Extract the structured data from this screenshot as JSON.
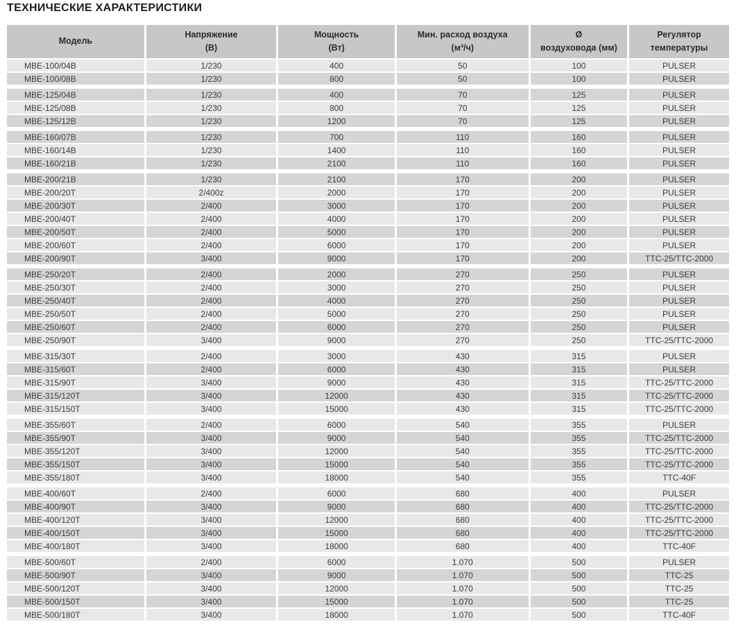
{
  "title": "ТЕХНИЧЕСКИЕ ХАРАКТЕРИСТИКИ",
  "colors": {
    "header_bg": "#c7c7c7",
    "row_light": "#e8e8e8",
    "row_dark": "#d5d5d5",
    "header_text": "#2b2b2b",
    "body_text": "#3a3a3a",
    "title_color": "#1d1d1d",
    "separator": "#ffffff"
  },
  "table": {
    "columns": [
      {
        "line1": "Модель",
        "line2": ""
      },
      {
        "line1": "Напряжение",
        "line2": "(В)"
      },
      {
        "line1": "Мощность",
        "line2": "(Вт)"
      },
      {
        "line1": "Мин. расход воздуха",
        "line2": "(м³/ч)"
      },
      {
        "line1": "Ø",
        "line2": "воздуховода (мм)"
      },
      {
        "line1": "Регулятор",
        "line2": "температуры"
      }
    ],
    "groups": [
      {
        "name": "MBE-100",
        "stripe_start": "light",
        "rows": [
          [
            "MBE-100/04B",
            "1/230",
            "400",
            "50",
            "100",
            "PULSER"
          ],
          [
            "MBE-100/08B",
            "1/230",
            "800",
            "50",
            "100",
            "PULSER"
          ]
        ]
      },
      {
        "name": "MBE-125",
        "stripe_start": "dark",
        "rows": [
          [
            "MBE-125/04B",
            "1/230",
            "400",
            "70",
            "125",
            "PULSER"
          ],
          [
            "MBE-125/08B",
            "1/230",
            "800",
            "70",
            "125",
            "PULSER"
          ],
          [
            "MBE-125/12B",
            "1/230",
            "1200",
            "70",
            "125",
            "PULSER"
          ]
        ]
      },
      {
        "name": "MBE-160",
        "stripe_start": "dark",
        "rows": [
          [
            "MBE-160/07B",
            "1/230",
            "700",
            "110",
            "160",
            "PULSER"
          ],
          [
            "MBE-160/14B",
            "1/230",
            "1400",
            "110",
            "160",
            "PULSER"
          ],
          [
            "MBE-160/21B",
            "1/230",
            "2100",
            "110",
            "160",
            "PULSER"
          ]
        ]
      },
      {
        "name": "MBE-200",
        "stripe_start": "dark",
        "rows": [
          [
            "MBE-200/21B",
            "1/230",
            "2100",
            "170",
            "200",
            "PULSER"
          ],
          [
            "MBE-200/20T",
            "2/400z",
            "2000",
            "170",
            "200",
            "PULSER"
          ],
          [
            "MBE-200/30T",
            "2/400",
            "3000",
            "170",
            "200",
            "PULSER"
          ],
          [
            "MBE-200/40T",
            "2/400",
            "4000",
            "170",
            "200",
            "PULSER"
          ],
          [
            "MBE-200/50T",
            "2/400",
            "5000",
            "170",
            "200",
            "PULSER"
          ],
          [
            "MBE-200/60T",
            "2/400",
            "6000",
            "170",
            "200",
            "PULSER"
          ],
          [
            "MBE-200/90T",
            "3/400",
            "9000",
            "170",
            "200",
            "TTC-25/TTC-2000"
          ]
        ]
      },
      {
        "name": "MBE-250",
        "stripe_start": "dark",
        "rows": [
          [
            "MBE-250/20T",
            "2/400",
            "2000",
            "270",
            "250",
            "PULSER"
          ],
          [
            "MBE-250/30T",
            "2/400",
            "3000",
            "270",
            "250",
            "PULSER"
          ],
          [
            "MBE-250/40T",
            "2/400",
            "4000",
            "270",
            "250",
            "PULSER"
          ],
          [
            "MBE-250/50T",
            "2/400",
            "5000",
            "270",
            "250",
            "PULSER"
          ],
          [
            "MBE-250/60T",
            "2/400",
            "6000",
            "270",
            "250",
            "PULSER"
          ],
          [
            "MBE-250/90T",
            "3/400",
            "9000",
            "270",
            "250",
            "TTC-25/TTC-2000"
          ]
        ]
      },
      {
        "name": "MBE-315",
        "stripe_start": "light",
        "rows": [
          [
            "MBE-315/30T",
            "2/400",
            "3000",
            "430",
            "315",
            "PULSER"
          ],
          [
            "MBE-315/60T",
            "2/400",
            "6000",
            "430",
            "315",
            "PULSER"
          ],
          [
            "MBE-315/90T",
            "3/400",
            "9000",
            "430",
            "315",
            "TTC-25/TTC-2000"
          ],
          [
            "MBE-315/120T",
            "3/400",
            "12000",
            "430",
            "315",
            "TTC-25/TTC-2000"
          ],
          [
            "MBE-315/150T",
            "3/400",
            "15000",
            "430",
            "315",
            "TTC-25/TTC-2000"
          ]
        ]
      },
      {
        "name": "MBE-355",
        "stripe_start": "light",
        "rows": [
          [
            "MBE-355/60T",
            "2/400",
            "6000",
            "540",
            "355",
            "PULSER"
          ],
          [
            "MBE-355/90T",
            "3/400",
            "9000",
            "540",
            "355",
            "TTC-25/TTC-2000"
          ],
          [
            "MBE-355/120T",
            "3/400",
            "12000",
            "540",
            "355",
            "TTC-25/TTC-2000"
          ],
          [
            "MBE-355/150T",
            "3/400",
            "15000",
            "540",
            "355",
            "TTC-25/TTC-2000"
          ],
          [
            "MBE-355/180T",
            "3/400",
            "18000",
            "540",
            "355",
            "TTC-40F"
          ]
        ]
      },
      {
        "name": "MBE-400",
        "stripe_start": "light",
        "rows": [
          [
            "MBE-400/60T",
            "2/400",
            "6000",
            "680",
            "400",
            "PULSER"
          ],
          [
            "MBE-400/90T",
            "3/400",
            "9000",
            "680",
            "400",
            "TTC-25/TTC-2000"
          ],
          [
            "MBE-400/120T",
            "3/400",
            "12000",
            "680",
            "400",
            "TTC-25/TTC-2000"
          ],
          [
            "MBE-400/150T",
            "3/400",
            "15000",
            "680",
            "400",
            "TTC-25/TTC-2000"
          ],
          [
            "MBE-400/180T",
            "3/400",
            "18000",
            "680",
            "400",
            "TTC-40F"
          ]
        ]
      },
      {
        "name": "MBE-500",
        "stripe_start": "light",
        "rows": [
          [
            "MBE-500/60T",
            "2/400",
            "6000",
            "1.070",
            "500",
            "PULSER"
          ],
          [
            "MBE-500/90T",
            "3/400",
            "9000",
            "1.070",
            "500",
            "TTC-25"
          ],
          [
            "MBE-500/120T",
            "3/400",
            "12000",
            "1.070",
            "500",
            "TTC-25"
          ],
          [
            "MBE-500/150T",
            "3/400",
            "15000",
            "1.070",
            "500",
            "TTC-25"
          ],
          [
            "MBE-500/180T",
            "3/400",
            "18000",
            "1.070",
            "500",
            "TTC-40F"
          ]
        ]
      }
    ]
  }
}
